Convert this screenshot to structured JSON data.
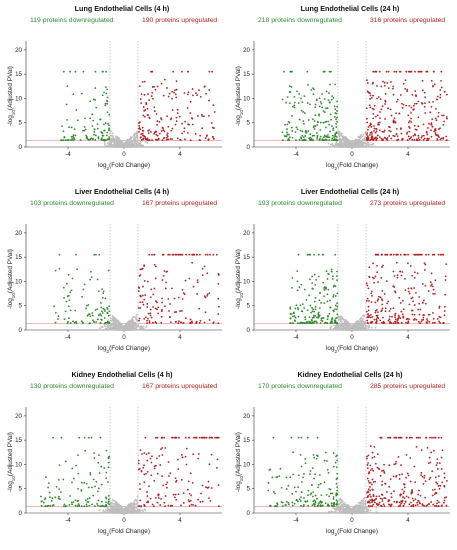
{
  "colors": {
    "downregulated": "#2e8b2e",
    "upregulated": "#b22222",
    "not_significant": "#bdbdbd",
    "threshold_fc": "#9a9a9a",
    "threshold_p": "#e07070"
  },
  "chart_data": [
    {
      "type": "scatter",
      "panel": "lung-4h",
      "title": "Lung Endothelial Cells (4 h)",
      "down_label": "119 proteins downregulated",
      "up_label": "190 proteins upregulated",
      "down_count": 119,
      "up_count": 190,
      "xlim": [
        -7,
        7
      ],
      "ylim": [
        0,
        21
      ],
      "xticks": [
        -4,
        0,
        4
      ],
      "yticks": [
        0,
        5,
        10,
        15,
        20
      ],
      "fc_threshold": 1,
      "p_threshold": 1.3,
      "cap": 15.5,
      "seed": 11,
      "down_tail": 8,
      "up_tail": 9,
      "down_max": 4.5,
      "up_max": 6.5
    },
    {
      "type": "scatter",
      "panel": "lung-24h",
      "title": "Lung Endothelial Cells (24 h)",
      "down_label": "218 proteins downregulated",
      "up_label": "316 proteins upregulated",
      "down_count": 218,
      "up_count": 316,
      "xlim": [
        -7,
        7
      ],
      "ylim": [
        0,
        21
      ],
      "xticks": [
        -4,
        0,
        4
      ],
      "yticks": [
        0,
        5,
        10,
        15,
        20
      ],
      "fc_threshold": 1,
      "p_threshold": 1.3,
      "cap": 15.5,
      "seed": 23,
      "down_tail": 10,
      "up_tail": 28,
      "down_max": 5,
      "up_max": 6.8
    },
    {
      "type": "scatter",
      "panel": "liver-4h",
      "title": "Liver Endothelial Cells (4 h)",
      "down_label": "103 proteins downregulated",
      "up_label": "167 proteins upregulated",
      "down_count": 103,
      "up_count": 167,
      "xlim": [
        -7,
        7
      ],
      "ylim": [
        0,
        21
      ],
      "xticks": [
        -4,
        0,
        4
      ],
      "yticks": [
        0,
        5,
        10,
        15,
        20
      ],
      "fc_threshold": 1,
      "p_threshold": 1.3,
      "cap": 15.5,
      "seed": 37,
      "down_tail": 5,
      "up_tail": 32,
      "down_max": 5,
      "up_max": 6.8
    },
    {
      "type": "scatter",
      "panel": "liver-24h",
      "title": "Liver Endothelial Cells (24 h)",
      "down_label": "193 proteins downregulated",
      "up_label": "273 proteins upregulated",
      "down_count": 193,
      "up_count": 273,
      "xlim": [
        -7,
        7
      ],
      "ylim": [
        0,
        21
      ],
      "xticks": [
        -4,
        0,
        4
      ],
      "yticks": [
        0,
        5,
        10,
        15,
        20
      ],
      "fc_threshold": 1,
      "p_threshold": 1.3,
      "cap": 15.5,
      "seed": 41,
      "down_tail": 10,
      "up_tail": 45,
      "down_max": 4.5,
      "up_max": 6.8
    },
    {
      "type": "scatter",
      "panel": "kidney-4h",
      "title": "Kidney Endothelial Cells (4 h)",
      "down_label": "130 proteins downregulated",
      "up_label": "167 proteins upregulated",
      "down_count": 130,
      "up_count": 167,
      "xlim": [
        -7,
        7
      ],
      "ylim": [
        0,
        21
      ],
      "xticks": [
        -4,
        0,
        4
      ],
      "yticks": [
        0,
        5,
        10,
        15,
        20
      ],
      "fc_threshold": 1,
      "p_threshold": 1.3,
      "cap": 15.5,
      "seed": 53,
      "down_tail": 7,
      "up_tail": 40,
      "down_max": 6,
      "up_max": 6.8
    },
    {
      "type": "scatter",
      "panel": "kidney-24h",
      "title": "Kidney Endothelial Cells (24 h)",
      "down_label": "170 proteins downregulated",
      "up_label": "285 proteins upregulated",
      "down_count": 170,
      "up_count": 285,
      "xlim": [
        -7,
        7
      ],
      "ylim": [
        0,
        21
      ],
      "xticks": [
        -4,
        0,
        4
      ],
      "yticks": [
        0,
        5,
        10,
        15,
        20
      ],
      "fc_threshold": 1,
      "p_threshold": 1.3,
      "cap": 15.5,
      "seed": 67,
      "down_tail": 6,
      "up_tail": 30,
      "down_max": 6,
      "up_max": 6.8
    }
  ]
}
